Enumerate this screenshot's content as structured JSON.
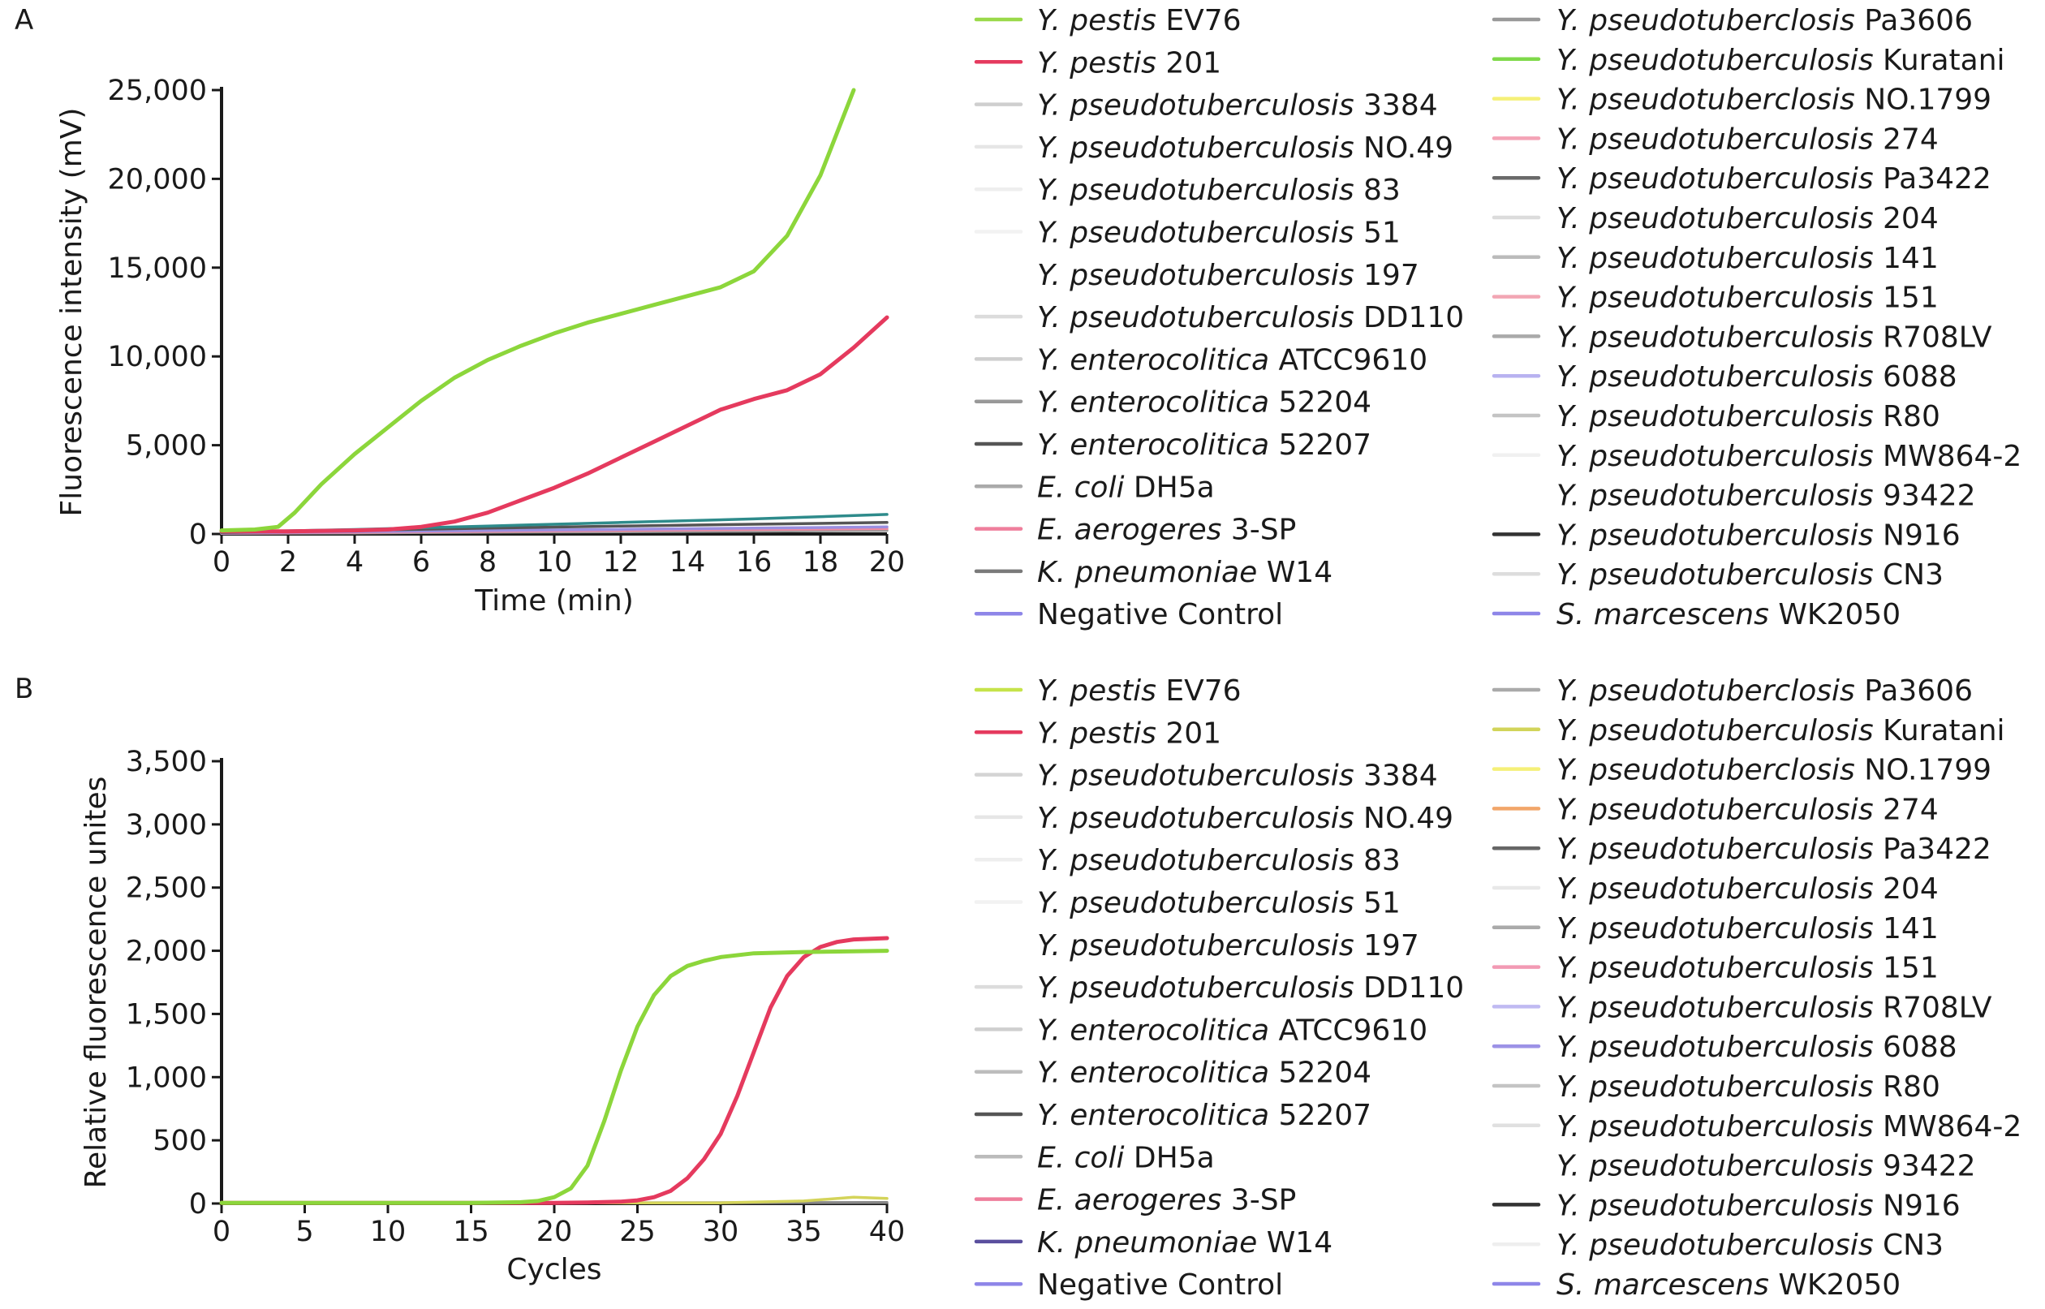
{
  "chart_data": [
    {
      "panel_label": "A",
      "type": "line",
      "xlabel": "Time (min)",
      "ylabel": "Fluorescence intensity (mV)",
      "xlim": [
        0,
        20
      ],
      "ylim": [
        0,
        25000
      ],
      "xticks": [
        "0",
        "2",
        "4",
        "6",
        "8",
        "10",
        "12",
        "14",
        "16",
        "18",
        "20"
      ],
      "yticks": [
        "0",
        "5,000",
        "10,000",
        "15,000",
        "20,000",
        "25,000"
      ],
      "xtick_values": [
        0,
        2,
        4,
        6,
        8,
        10,
        12,
        14,
        16,
        18,
        20
      ],
      "ytick_values": [
        0,
        5000,
        10000,
        15000,
        20000,
        25000
      ],
      "series": [
        {
          "color": "#8cd63b",
          "x": [
            0,
            1,
            1.7,
            2.2,
            3,
            4,
            5,
            6,
            7,
            8,
            9,
            10,
            11,
            12,
            13,
            14,
            15,
            16,
            17,
            18,
            19
          ],
          "y": [
            200,
            250,
            400,
            1200,
            2800,
            4500,
            6000,
            7500,
            8800,
            9800,
            10600,
            11300,
            11900,
            12400,
            12900,
            13400,
            13900,
            14800,
            16800,
            20200,
            25000
          ]
        },
        {
          "color": "#e53a5e",
          "x": [
            0,
            2,
            4,
            5,
            6,
            7,
            8,
            9,
            10,
            11,
            12,
            13,
            14,
            15,
            16,
            17,
            18,
            19,
            20
          ],
          "y": [
            150,
            150,
            200,
            250,
            400,
            700,
            1200,
            1900,
            2600,
            3400,
            4300,
            5200,
            6100,
            7000,
            7600,
            8100,
            9000,
            10500,
            12200
          ]
        },
        {
          "color": "#2e8b8b",
          "x": [
            0,
            4,
            8,
            12,
            16,
            20
          ],
          "y": [
            100,
            250,
            450,
            650,
            850,
            1100
          ]
        },
        {
          "color": "#555555",
          "x": [
            0,
            4,
            8,
            12,
            16,
            20
          ],
          "y": [
            80,
            200,
            330,
            450,
            550,
            650
          ]
        },
        {
          "color": "#9b8fe0",
          "x": [
            0,
            4,
            8,
            12,
            16,
            20
          ],
          "y": [
            60,
            130,
            200,
            260,
            330,
            400
          ]
        },
        {
          "color": "#f08aa0",
          "x": [
            0,
            4,
            8,
            12,
            16,
            20
          ],
          "y": [
            40,
            90,
            150,
            200,
            250,
            300
          ]
        },
        {
          "color": "#999999",
          "x": [
            0,
            4,
            8,
            12,
            16,
            20
          ],
          "y": [
            30,
            60,
            100,
            130,
            160,
            200
          ]
        }
      ]
    },
    {
      "panel_label": "B",
      "type": "line",
      "xlabel": "Cycles",
      "ylabel": "Relative fluorescence unites",
      "xlim": [
        0,
        40
      ],
      "ylim": [
        0,
        3500
      ],
      "xticks": [
        "0",
        "5",
        "10",
        "15",
        "20",
        "25",
        "30",
        "35",
        "40"
      ],
      "yticks": [
        "0",
        "500",
        "1,000",
        "1,500",
        "2,000",
        "2,500",
        "3,000",
        "3,500"
      ],
      "xtick_values": [
        0,
        5,
        10,
        15,
        20,
        25,
        30,
        35,
        40
      ],
      "ytick_values": [
        0,
        500,
        1000,
        1500,
        2000,
        2500,
        3000,
        3500
      ],
      "series": [
        {
          "color": "#8cd63b",
          "x": [
            0,
            5,
            10,
            15,
            18,
            19,
            20,
            21,
            22,
            23,
            24,
            25,
            26,
            27,
            28,
            29,
            30,
            32,
            35,
            40
          ],
          "y": [
            5,
            5,
            5,
            5,
            10,
            20,
            50,
            120,
            300,
            650,
            1050,
            1400,
            1650,
            1800,
            1880,
            1920,
            1950,
            1980,
            1990,
            2000
          ]
        },
        {
          "color": "#e53a5e",
          "x": [
            0,
            10,
            20,
            22,
            24,
            25,
            26,
            27,
            28,
            29,
            30,
            31,
            32,
            33,
            34,
            35,
            36,
            37,
            38,
            40
          ],
          "y": [
            5,
            5,
            5,
            8,
            15,
            25,
            50,
            100,
            200,
            350,
            550,
            850,
            1200,
            1550,
            1800,
            1950,
            2030,
            2070,
            2090,
            2100
          ]
        },
        {
          "color": "#d4d45a",
          "x": [
            0,
            30,
            35,
            38,
            40
          ],
          "y": [
            5,
            5,
            20,
            50,
            40
          ]
        },
        {
          "color": "#888888",
          "x": [
            0,
            40
          ],
          "y": [
            3,
            8
          ]
        }
      ]
    }
  ],
  "legend_panel_a": {
    "left": [
      {
        "italic": "Y. pestis",
        "rest": " EV76",
        "color": "#9ad94a"
      },
      {
        "italic": "Y. pestis",
        "rest": " 201",
        "color": "#e53a5e"
      },
      {
        "italic": "Y. pseudotuberculosis",
        "rest": " 3384",
        "color": "#cfcfcf"
      },
      {
        "italic": "Y. pseudotuberculosis",
        "rest": " NO.49",
        "color": "#e6e6e6"
      },
      {
        "italic": "Y. pseudotuberculosis",
        "rest": " 83",
        "color": "#eeeeee"
      },
      {
        "italic": "Y. pseudotuberculosis",
        "rest": " 51",
        "color": "#f2f2f2"
      },
      {
        "italic": "Y. pseudotuberculosis",
        "rest": " 197",
        "color": "#ffffff"
      },
      {
        "italic": "Y. pseudotuberculosis",
        "rest": " DD110",
        "color": "#dcdcdc"
      },
      {
        "italic": "Y. enterocolitica",
        "rest": " ATCC9610",
        "color": "#cfcfcf"
      },
      {
        "italic": "Y. enterocolitica",
        "rest": " 52204",
        "color": "#999999"
      },
      {
        "italic": "Y. enterocolitica",
        "rest": " 52207",
        "color": "#555555"
      },
      {
        "italic": "E. coli",
        "rest": " DH5a",
        "color": "#aaaaaa"
      },
      {
        "italic": "E. aerogeres",
        "rest": " 3-SP",
        "color": "#ef7f9c"
      },
      {
        "italic": "K. pneumoniae",
        "rest": " W14",
        "color": "#7a7a7a"
      },
      {
        "italic": "",
        "rest": "Negative Control",
        "color": "#8e86e8"
      }
    ],
    "right": [
      {
        "italic": "Y. pseudotuberclosis",
        "rest": " Pa3606",
        "color": "#999999"
      },
      {
        "italic": "Y. pseudotuberculosis",
        "rest": " Kuratani",
        "color": "#7fd94a"
      },
      {
        "italic": "Y. pseudotuberclosis",
        "rest": " NO.1799",
        "color": "#f5f078"
      },
      {
        "italic": "Y. pseudotuberculosis",
        "rest": " 274",
        "color": "#f4a3b6"
      },
      {
        "italic": "Y. pseudotuberculosis",
        "rest": " Pa3422",
        "color": "#6a6a6a"
      },
      {
        "italic": "Y. pseudotuberculosis",
        "rest": " 204",
        "color": "#dcdcdc"
      },
      {
        "italic": "Y. pseudotuberculosis",
        "rest": " 141",
        "color": "#bbbbbb"
      },
      {
        "italic": "Y. pseudotuberculosis",
        "rest": " 151",
        "color": "#f2a6b4"
      },
      {
        "italic": "Y. pseudotuberculosis",
        "rest": " R708LV",
        "color": "#aaaaaa"
      },
      {
        "italic": "Y. pseudotuberculosis",
        "rest": " 6088",
        "color": "#b8b2f0"
      },
      {
        "italic": "Y. pseudotuberculosis",
        "rest": " R80",
        "color": "#c4c4c4"
      },
      {
        "italic": "Y. pseudotuberculosis",
        "rest": " MW864-2",
        "color": "#f0f0f0"
      },
      {
        "italic": "Y. pseudotuberculosis",
        "rest": " 93422",
        "color": "#ffffff"
      },
      {
        "italic": "Y. pseudotuberculosis",
        "rest": " N916",
        "color": "#333333"
      },
      {
        "italic": "Y. pseudotuberculosis",
        "rest": " CN3",
        "color": "#dddddd"
      },
      {
        "italic": "S. marcescens",
        "rest": " WK2050",
        "color": "#8e86e8"
      }
    ]
  },
  "legend_panel_b": {
    "left": [
      {
        "italic": "Y. pestis",
        "rest": " EV76",
        "color": "#c6e34a"
      },
      {
        "italic": "Y. pestis",
        "rest": " 201",
        "color": "#e53a5e"
      },
      {
        "italic": "Y. pseudotuberculosis",
        "rest": " 3384",
        "color": "#d4d4d4"
      },
      {
        "italic": "Y. pseudotuberculosis",
        "rest": " NO.49",
        "color": "#e6e6e6"
      },
      {
        "italic": "Y. pseudotuberculosis",
        "rest": " 83",
        "color": "#eeeeee"
      },
      {
        "italic": "Y. pseudotuberculosis",
        "rest": " 51",
        "color": "#f2f2f2"
      },
      {
        "italic": "Y. pseudotuberculosis",
        "rest": " 197",
        "color": "#ffffff"
      },
      {
        "italic": "Y. pseudotuberculosis",
        "rest": " DD110",
        "color": "#dcdcdc"
      },
      {
        "italic": "Y. enterocolitica",
        "rest": " ATCC9610",
        "color": "#cfcfcf"
      },
      {
        "italic": "Y. enterocolitica",
        "rest": " 52204",
        "color": "#bdbdbd"
      },
      {
        "italic": "Y. enterocolitica",
        "rest": " 52207",
        "color": "#555555"
      },
      {
        "italic": "E. coli",
        "rest": " DH5a",
        "color": "#bbbbbb"
      },
      {
        "italic": "E. aerogeres",
        "rest": " 3-SP",
        "color": "#ef7f9c"
      },
      {
        "italic": "K. pneumoniae",
        "rest": " W14",
        "color": "#5a4f9e"
      },
      {
        "italic": "",
        "rest": "Negative Control",
        "color": "#8e86e8"
      }
    ],
    "right": [
      {
        "italic": "Y. pseudotuberclosis",
        "rest": " Pa3606",
        "color": "#aaaaaa"
      },
      {
        "italic": "Y. pseudotuberculosis",
        "rest": " Kuratani",
        "color": "#d2d45a"
      },
      {
        "italic": "Y. pseudotuberclosis",
        "rest": " NO.1799",
        "color": "#f5f078"
      },
      {
        "italic": "Y. pseudotuberculosis",
        "rest": " 274",
        "color": "#f2a66a"
      },
      {
        "italic": "Y. pseudotuberculosis",
        "rest": " Pa3422",
        "color": "#666666"
      },
      {
        "italic": "Y. pseudotuberculosis",
        "rest": " 204",
        "color": "#e8e8e8"
      },
      {
        "italic": "Y. pseudotuberculosis",
        "rest": " 141",
        "color": "#aaaaaa"
      },
      {
        "italic": "Y. pseudotuberculosis",
        "rest": " 151",
        "color": "#f29ab4"
      },
      {
        "italic": "Y. pseudotuberculosis",
        "rest": " R708LV",
        "color": "#c0baf2"
      },
      {
        "italic": "Y. pseudotuberculosis",
        "rest": " 6088",
        "color": "#9c92e6"
      },
      {
        "italic": "Y. pseudotuberculosis",
        "rest": " R80",
        "color": "#c4c4c4"
      },
      {
        "italic": "Y. pseudotuberculosis",
        "rest": " MW864-2",
        "color": "#e0e0e0"
      },
      {
        "italic": "Y. pseudotuberculosis",
        "rest": " 93422",
        "color": "#ffffff"
      },
      {
        "italic": "Y. pseudotuberculosis",
        "rest": " N916",
        "color": "#333333"
      },
      {
        "italic": "Y. pseudotuberculosis",
        "rest": " CN3",
        "color": "#eeeeee"
      },
      {
        "italic": "S. marcescens",
        "rest": " WK2050",
        "color": "#8e86e8"
      }
    ]
  }
}
